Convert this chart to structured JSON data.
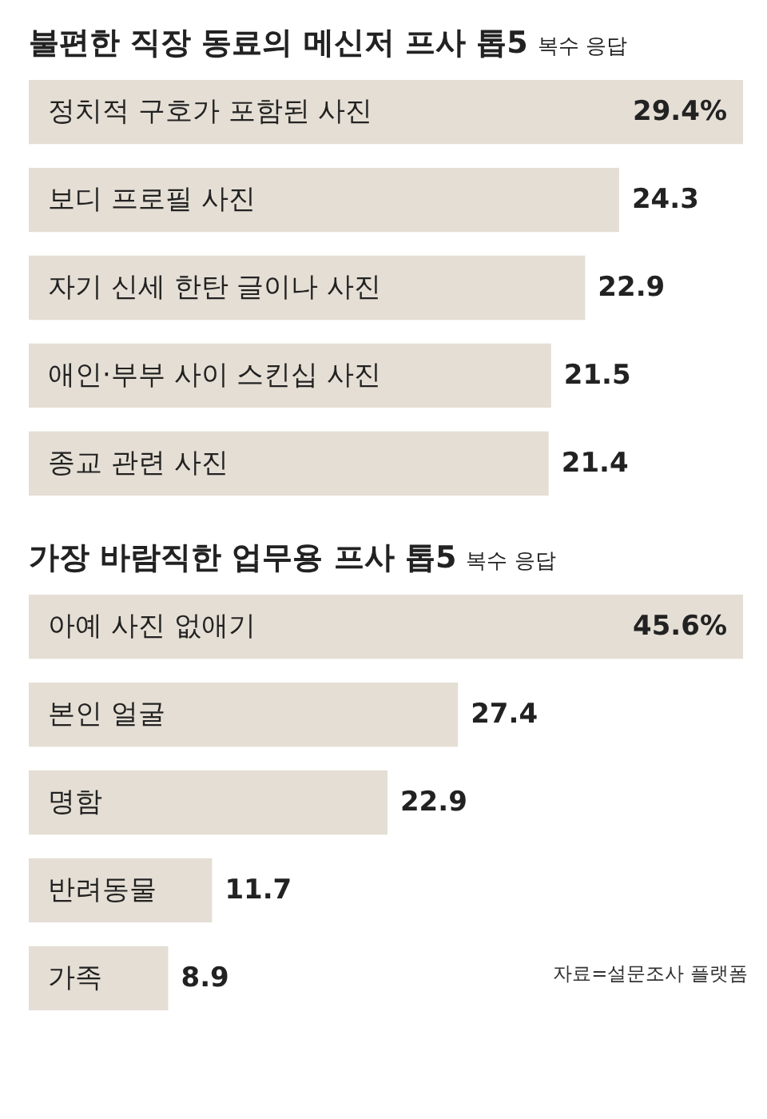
{
  "chart_data": [
    {
      "type": "bar",
      "orientation": "horizontal",
      "title": "불편한 직장 동료의 메신저 프사 톱5",
      "subtitle": "복수 응답",
      "categories": [
        "정치적 구호가 포함된 사진",
        "보디 프로필 사진",
        "자기 신세 한탄 글이나 사진",
        "애인·부부 사이 스킨십 사진",
        "종교 관련 사진"
      ],
      "values": [
        29.4,
        24.3,
        22.9,
        21.5,
        21.4
      ],
      "value_labels": [
        "29.4%",
        "24.3",
        "22.9",
        "21.5",
        "21.4"
      ],
      "color": "#e4ded4"
    },
    {
      "type": "bar",
      "orientation": "horizontal",
      "title": "가장 바람직한 업무용 프사 톱5",
      "subtitle": "복수 응답",
      "categories": [
        "아예 사진 없애기",
        "본인 얼굴",
        "명함",
        "반려동물",
        "가족"
      ],
      "values": [
        45.6,
        27.4,
        22.9,
        11.7,
        8.9
      ],
      "value_labels": [
        "45.6%",
        "27.4",
        "22.9",
        "11.7",
        "8.9"
      ],
      "color": "#e4ded4",
      "annotations": [
        "자료=설문조사 플랫폼"
      ]
    }
  ]
}
